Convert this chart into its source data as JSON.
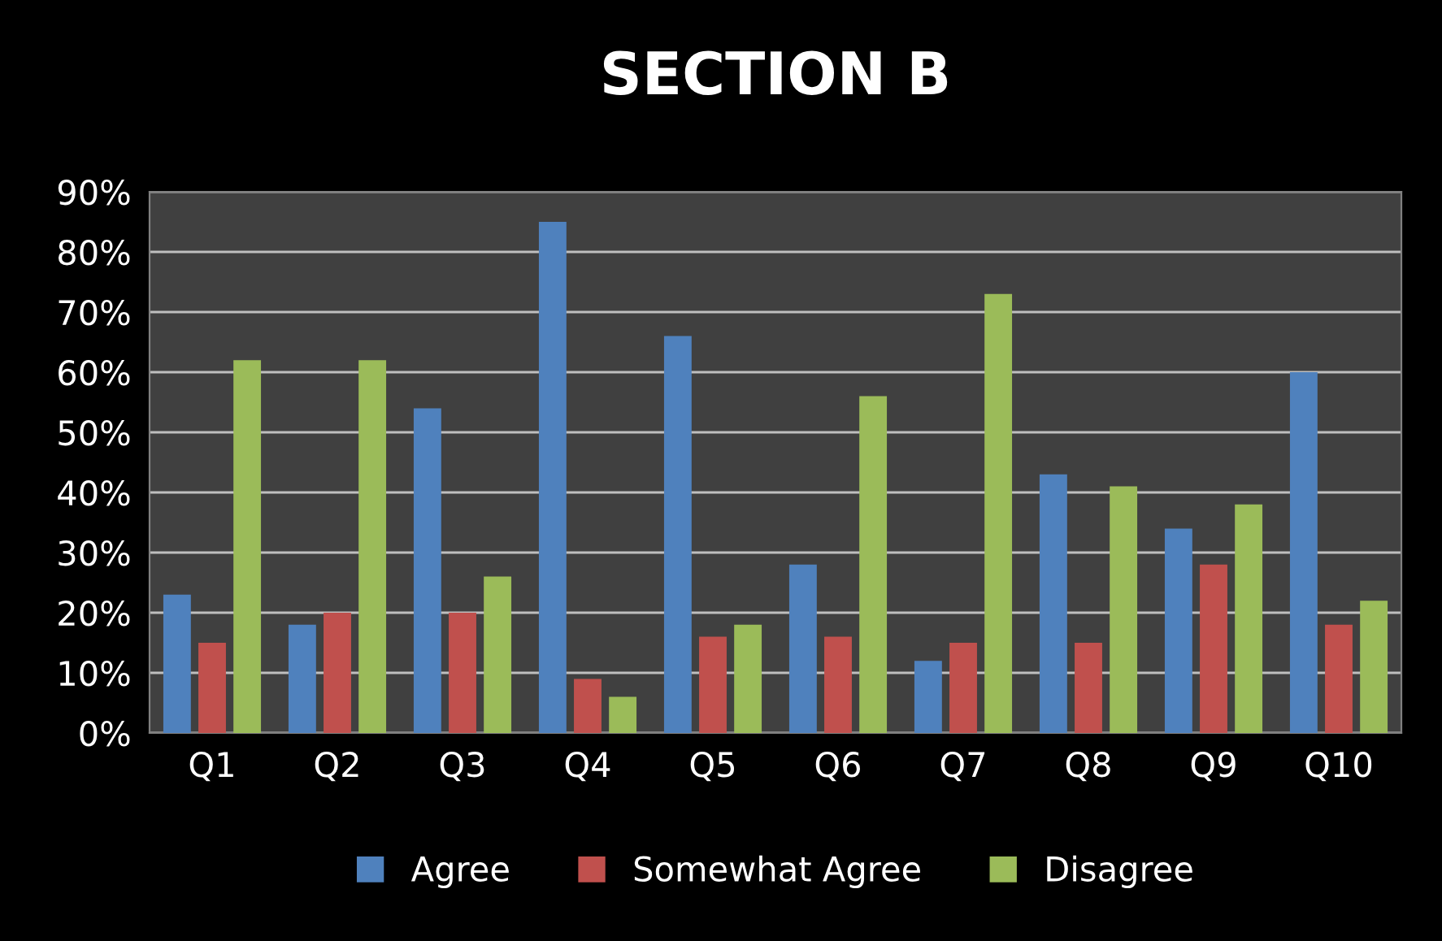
{
  "chart_data": {
    "type": "bar",
    "title": "SECTION B",
    "categories": [
      "Q1",
      "Q2",
      "Q3",
      "Q4",
      "Q5",
      "Q6",
      "Q7",
      "Q8",
      "Q9",
      "Q10"
    ],
    "series": [
      {
        "name": "Agree",
        "color": "#4f81bd",
        "values": [
          23,
          18,
          54,
          85,
          66,
          28,
          12,
          43,
          34,
          60
        ]
      },
      {
        "name": "Somewhat Agree",
        "color": "#c0504d",
        "values": [
          15,
          20,
          20,
          9,
          16,
          16,
          15,
          15,
          28,
          18
        ]
      },
      {
        "name": "Disagree",
        "color": "#9bbb59",
        "values": [
          62,
          62,
          26,
          6,
          18,
          56,
          73,
          41,
          38,
          22
        ]
      }
    ],
    "ylim": [
      0,
      90
    ],
    "yticks": [
      {
        "value": 0,
        "label": "0%"
      },
      {
        "value": 10,
        "label": "10%"
      },
      {
        "value": 20,
        "label": "20%"
      },
      {
        "value": 30,
        "label": "30%"
      },
      {
        "value": 40,
        "label": "40%"
      },
      {
        "value": 50,
        "label": "50%"
      },
      {
        "value": 60,
        "label": "60%"
      },
      {
        "value": 70,
        "label": "70%"
      },
      {
        "value": 80,
        "label": "80%"
      },
      {
        "value": 90,
        "label": "90%"
      }
    ],
    "grid": "y",
    "legend": "bottom"
  }
}
